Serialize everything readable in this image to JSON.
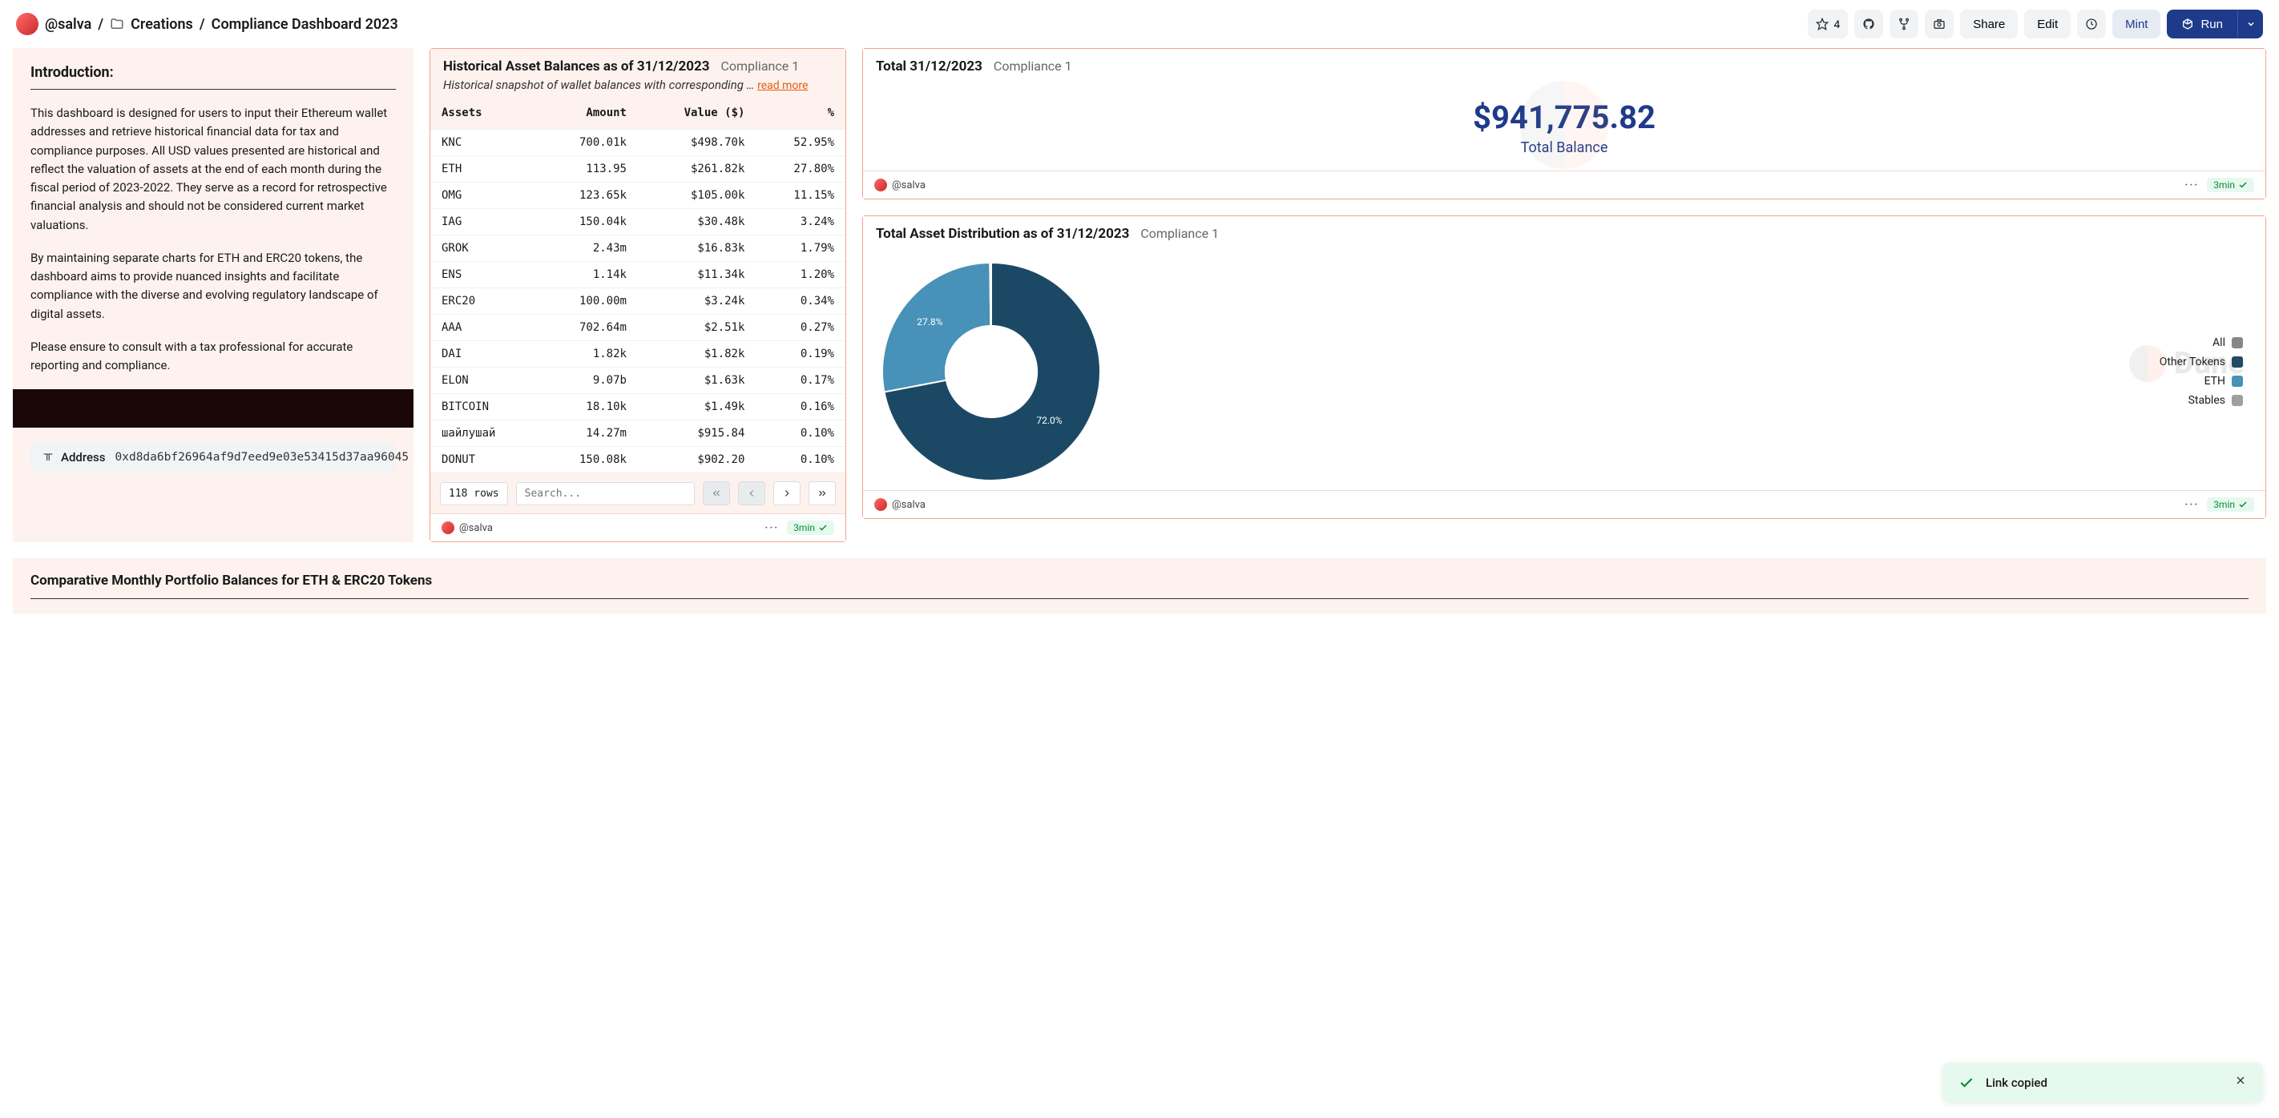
{
  "breadcrumb": {
    "user": "@salva",
    "folder": "Creations",
    "title": "Compliance Dashboard 2023"
  },
  "toolbar": {
    "star_count": "4",
    "share": "Share",
    "edit": "Edit",
    "mint": "Mint",
    "run": "Run"
  },
  "intro": {
    "heading": "Introduction:",
    "p1": "This dashboard is designed for users to input their Ethereum wallet addresses and retrieve historical financial data for tax and compliance purposes. All USD values presented are historical and reflect the valuation of assets at the end of each month during the fiscal period of 2023-2022. They serve as a record for retrospective financial analysis and should not be considered current market valuations.",
    "p2": "By maintaining separate charts for ETH and ERC20 tokens, the dashboard aims to provide nuanced insights and facilitate compliance with the diverse and evolving regulatory landscape of digital assets.",
    "p3": "Please ensure to consult with a tax professional for accurate reporting and compliance."
  },
  "address": {
    "label": "Address",
    "value": "0xd8da6bf26964af9d7eed9e03e53415d37aa96045"
  },
  "assets_card": {
    "title": "Historical Asset Balances as of 31/12/2023",
    "tag": "Compliance 1",
    "subtitle": "Historical snapshot of wallet balances with corresponding  … ",
    "read_more": "read more",
    "columns": {
      "c1": "Assets",
      "c2": "Amount",
      "c3": "Value ($)",
      "c4": "%"
    },
    "rows": [
      {
        "asset": "KNC",
        "amount": "700.01k",
        "value": "$498.70k",
        "pct": "52.95%"
      },
      {
        "asset": "ETH",
        "amount": "113.95",
        "value": "$261.82k",
        "pct": "27.80%"
      },
      {
        "asset": "OMG",
        "amount": "123.65k",
        "value": "$105.00k",
        "pct": "11.15%"
      },
      {
        "asset": "IAG",
        "amount": "150.04k",
        "value": "$30.48k",
        "pct": "3.24%"
      },
      {
        "asset": "GROK",
        "amount": "2.43m",
        "value": "$16.83k",
        "pct": "1.79%"
      },
      {
        "asset": "ENS",
        "amount": "1.14k",
        "value": "$11.34k",
        "pct": "1.20%"
      },
      {
        "asset": "ERC20",
        "amount": "100.00m",
        "value": "$3.24k",
        "pct": "0.34%"
      },
      {
        "asset": "AAA",
        "amount": "702.64m",
        "value": "$2.51k",
        "pct": "0.27%"
      },
      {
        "asset": "DAI",
        "amount": "1.82k",
        "value": "$1.82k",
        "pct": "0.19%"
      },
      {
        "asset": "ELON",
        "amount": "9.07b",
        "value": "$1.63k",
        "pct": "0.17%"
      },
      {
        "asset": "BITCOIN",
        "amount": "18.10k",
        "value": "$1.49k",
        "pct": "0.16%"
      },
      {
        "asset": "шайлушай",
        "amount": "14.27m",
        "value": "$915.84",
        "pct": "0.10%"
      },
      {
        "asset": "DONUT",
        "amount": "150.08k",
        "value": "$902.20",
        "pct": "0.10%"
      }
    ],
    "row_count": "118 rows",
    "search_placeholder": "Search...",
    "author": "@salva",
    "time": "3min"
  },
  "total_card": {
    "title": "Total 31/12/2023",
    "tag": "Compliance 1",
    "amount": "$941,775.82",
    "label": "Total Balance",
    "author": "@salva",
    "time": "3min"
  },
  "dist_card": {
    "title": "Total Asset Distribution as of 31/12/2023",
    "tag": "Compliance 1",
    "donut": {
      "type": "donut",
      "size": 280,
      "inner_ratio": 0.42,
      "background": "#ffffff",
      "segments": [
        {
          "label": "Other Tokens",
          "value": 72.0,
          "color": "#1b4965",
          "text": "72.0%"
        },
        {
          "label": "ETH",
          "value": 27.8,
          "color": "#4891b8",
          "text": "27.8%"
        },
        {
          "label": "Stables",
          "value": 0.2,
          "color": "#a0a0a0",
          "text": ""
        }
      ]
    },
    "legend": [
      {
        "label": "All",
        "color": "#888888"
      },
      {
        "label": "Other Tokens",
        "color": "#1b4965"
      },
      {
        "label": "ETH",
        "color": "#4891b8"
      },
      {
        "label": "Stables",
        "color": "#a0a0a0"
      }
    ],
    "author": "@salva",
    "time": "3min",
    "watermark": "Dune"
  },
  "bottom": {
    "title": "Comparative Monthly Portfolio Balances for ETH & ERC20 Tokens"
  },
  "toast": {
    "message": "Link copied"
  }
}
